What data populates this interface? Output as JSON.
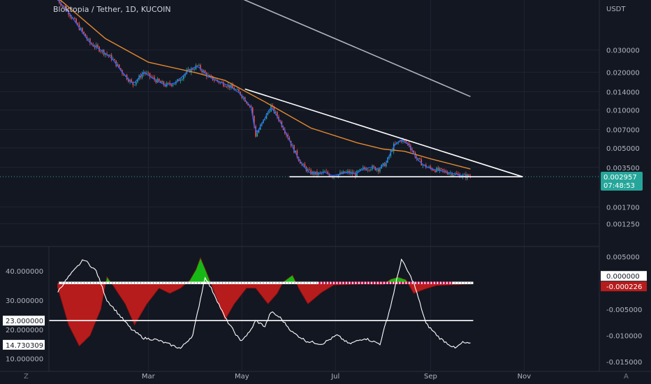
{
  "header": {
    "symbol_label": "Bloktopia / Tether, 1D, KUCOIN"
  },
  "chart_data": [
    {
      "type": "candlestick",
      "title": "Bloktopia / Tether, 1D, KUCOIN",
      "y_axis_title": "USDT",
      "y_scale": "log",
      "y_ticks": [
        "0.030000",
        "0.020000",
        "0.014000",
        "0.010000",
        "0.007000",
        "0.005000",
        "0.003500",
        "0.001700",
        "0.001250"
      ],
      "x_ticks": [
        "Mar",
        "May",
        "Jul",
        "Sep",
        "Nov"
      ],
      "last_price": {
        "value": "0.002957",
        "countdown": "07:48:53",
        "color": "#26a69a"
      },
      "candle_colors": {
        "up": "#26a69a",
        "down": "#ef5350"
      },
      "series": [
        {
          "style": "blue line",
          "color": "#2962ff"
        },
        {
          "style": "orange moving average",
          "color": "#e38a2e"
        },
        {
          "style": "grey moving average",
          "color": "#b2b5be"
        }
      ],
      "annotations": [
        {
          "type": "descending trendline",
          "color": "#ffffff",
          "from": [
            "2022-05-03",
            0.0147
          ],
          "to": [
            "2022-10-31",
            0.00295
          ]
        },
        {
          "type": "horizontal support",
          "color": "#ffffff",
          "from": [
            "2022-06-01",
            0.00295
          ],
          "to": [
            "2022-10-31",
            0.00295
          ]
        }
      ],
      "price_path": [
        [
          "2022-01-01",
          0.075
        ],
        [
          "2022-01-08",
          0.06
        ],
        [
          "2022-01-15",
          0.045
        ],
        [
          "2022-01-22",
          0.034
        ],
        [
          "2022-01-29",
          0.03
        ],
        [
          "2022-02-05",
          0.026
        ],
        [
          "2022-02-12",
          0.02
        ],
        [
          "2022-02-19",
          0.016
        ],
        [
          "2022-02-26",
          0.02
        ],
        [
          "2022-03-05",
          0.0175
        ],
        [
          "2022-03-12",
          0.0158
        ],
        [
          "2022-03-19",
          0.0165
        ],
        [
          "2022-03-26",
          0.02
        ],
        [
          "2022-04-02",
          0.0225
        ],
        [
          "2022-04-09",
          0.0185
        ],
        [
          "2022-04-16",
          0.0168
        ],
        [
          "2022-04-23",
          0.0155
        ],
        [
          "2022-04-30",
          0.0135
        ],
        [
          "2022-05-07",
          0.0105
        ],
        [
          "2022-05-10",
          0.0063
        ],
        [
          "2022-05-15",
          0.0082
        ],
        [
          "2022-05-20",
          0.0107
        ],
        [
          "2022-05-25",
          0.0085
        ],
        [
          "2022-05-30",
          0.0065
        ],
        [
          "2022-06-04",
          0.0048
        ],
        [
          "2022-06-09",
          0.0037
        ],
        [
          "2022-06-14",
          0.0032
        ],
        [
          "2022-06-19",
          0.0031
        ],
        [
          "2022-06-24",
          0.0032
        ],
        [
          "2022-06-29",
          0.003
        ],
        [
          "2022-07-04",
          0.0031
        ],
        [
          "2022-07-09",
          0.0032
        ],
        [
          "2022-07-14",
          0.0031
        ],
        [
          "2022-07-19",
          0.0034
        ],
        [
          "2022-07-24",
          0.0035
        ],
        [
          "2022-07-29",
          0.0034
        ],
        [
          "2022-08-03",
          0.0038
        ],
        [
          "2022-08-08",
          0.0052
        ],
        [
          "2022-08-13",
          0.0058
        ],
        [
          "2022-08-18",
          0.0053
        ],
        [
          "2022-08-23",
          0.0041
        ],
        [
          "2022-08-28",
          0.0036
        ],
        [
          "2022-09-02",
          0.0034
        ],
        [
          "2022-09-07",
          0.0033
        ],
        [
          "2022-09-12",
          0.0032
        ],
        [
          "2022-09-17",
          0.0031
        ],
        [
          "2022-09-22",
          0.003
        ],
        [
          "2022-09-27",
          0.00298
        ]
      ],
      "orange_ma": [
        [
          "2022-01-01",
          0.078
        ],
        [
          "2022-02-01",
          0.037
        ],
        [
          "2022-03-01",
          0.024
        ],
        [
          "2022-04-01",
          0.0198
        ],
        [
          "2022-04-20",
          0.0172
        ],
        [
          "2022-05-15",
          0.0118
        ],
        [
          "2022-06-15",
          0.0072
        ],
        [
          "2022-07-15",
          0.0055
        ],
        [
          "2022-08-01",
          0.0049
        ],
        [
          "2022-08-15",
          0.0047
        ],
        [
          "2022-09-01",
          0.0041
        ],
        [
          "2022-09-27",
          0.0034
        ]
      ],
      "grey_ma": [
        [
          "2022-01-26",
          0.24
        ],
        [
          "2022-09-27",
          0.0128
        ]
      ]
    },
    {
      "type": "oscillator",
      "left_ticks": [
        "40.000000",
        "30.000000",
        "20.000000",
        "10.000000"
      ],
      "right_ticks": [
        "0.005000",
        "-0.005000",
        "-0.010000",
        "-0.015000"
      ],
      "left_ylim": [
        8,
        46
      ],
      "right_ylim": [
        -0.0155,
        0.0056
      ],
      "left_markers": [
        {
          "value": "23.000000",
          "bg": "#ffffff",
          "fg": "#131722"
        },
        {
          "value": "14.730309",
          "bg": "#ffffff",
          "fg": "#131722"
        }
      ],
      "right_markers": [
        {
          "value": "0.000000",
          "bg": "#ffffff",
          "fg": "#131722"
        },
        {
          "value": "-0.000226",
          "bg": "#b71c1c",
          "fg": "#ffffff"
        }
      ],
      "reference_line": {
        "value": 23
      },
      "zero_line": {
        "value": 0
      },
      "histogram": [
        [
          "2022-01-01",
          -0.001
        ],
        [
          "2022-01-08",
          -0.008
        ],
        [
          "2022-01-15",
          -0.012
        ],
        [
          "2022-01-22",
          -0.01
        ],
        [
          "2022-01-29",
          -0.005
        ],
        [
          "2022-02-02",
          0.0012
        ],
        [
          "2022-02-06",
          -0.0005
        ],
        [
          "2022-02-14",
          -0.004
        ],
        [
          "2022-02-20",
          -0.008
        ],
        [
          "2022-02-28",
          -0.004
        ],
        [
          "2022-03-08",
          -0.001
        ],
        [
          "2022-03-15",
          -0.002
        ],
        [
          "2022-03-22",
          -0.001
        ],
        [
          "2022-03-28",
          0.0005
        ],
        [
          "2022-04-01",
          0.0025
        ],
        [
          "2022-04-04",
          0.0048
        ],
        [
          "2022-04-08",
          0.002
        ],
        [
          "2022-04-12",
          -0.001
        ],
        [
          "2022-04-20",
          -0.007
        ],
        [
          "2022-04-26",
          -0.004
        ],
        [
          "2022-05-04",
          -0.001
        ],
        [
          "2022-05-10",
          -0.001
        ],
        [
          "2022-05-18",
          -0.004
        ],
        [
          "2022-05-24",
          -0.002
        ],
        [
          "2022-05-28",
          0.0002
        ],
        [
          "2022-06-03",
          0.0015
        ],
        [
          "2022-06-07",
          -0.001
        ],
        [
          "2022-06-13",
          -0.004
        ],
        [
          "2022-06-22",
          -0.0018
        ],
        [
          "2022-06-30",
          -0.0004
        ],
        [
          "2022-07-10",
          -0.0003
        ],
        [
          "2022-07-20",
          -0.0002
        ],
        [
          "2022-08-01",
          -0.0003
        ],
        [
          "2022-08-06",
          0.0007
        ],
        [
          "2022-08-11",
          0.0011
        ],
        [
          "2022-08-16",
          0.0006
        ],
        [
          "2022-08-21",
          -0.002
        ],
        [
          "2022-08-28",
          -0.0012
        ],
        [
          "2022-09-05",
          -0.0005
        ],
        [
          "2022-09-27",
          -0.00023
        ]
      ],
      "white_line": [
        [
          "2022-01-01",
          33
        ],
        [
          "2022-01-08",
          38
        ],
        [
          "2022-01-18",
          44
        ],
        [
          "2022-01-26",
          40
        ],
        [
          "2022-02-02",
          30
        ],
        [
          "2022-02-10",
          25
        ],
        [
          "2022-02-18",
          20
        ],
        [
          "2022-02-26",
          17
        ],
        [
          "2022-03-06",
          16.5
        ],
        [
          "2022-03-14",
          15
        ],
        [
          "2022-03-22",
          13.5
        ],
        [
          "2022-03-30",
          18
        ],
        [
          "2022-04-07",
          38
        ],
        [
          "2022-04-13",
          32
        ],
        [
          "2022-04-20",
          24
        ],
        [
          "2022-04-30",
          16
        ],
        [
          "2022-05-06",
          19
        ],
        [
          "2022-05-10",
          23
        ],
        [
          "2022-05-16",
          21
        ],
        [
          "2022-05-20",
          26
        ],
        [
          "2022-05-26",
          24
        ],
        [
          "2022-06-03",
          19
        ],
        [
          "2022-06-12",
          16
        ],
        [
          "2022-06-22",
          15
        ],
        [
          "2022-07-02",
          18
        ],
        [
          "2022-07-10",
          15
        ],
        [
          "2022-07-20",
          17
        ],
        [
          "2022-07-30",
          15
        ],
        [
          "2022-08-06",
          28
        ],
        [
          "2022-08-13",
          44
        ],
        [
          "2022-08-21",
          36
        ],
        [
          "2022-08-29",
          22
        ],
        [
          "2022-09-07",
          17
        ],
        [
          "2022-09-17",
          13.5
        ],
        [
          "2022-09-22",
          15.5
        ],
        [
          "2022-09-27",
          15
        ]
      ],
      "colors": {
        "positive": "#16b816",
        "negative": "#b71c1c",
        "dots": "#e91e63",
        "white": "#ffffff"
      }
    }
  ],
  "footer": {
    "left_icon_label": "Z",
    "right_icon_label": "A"
  }
}
